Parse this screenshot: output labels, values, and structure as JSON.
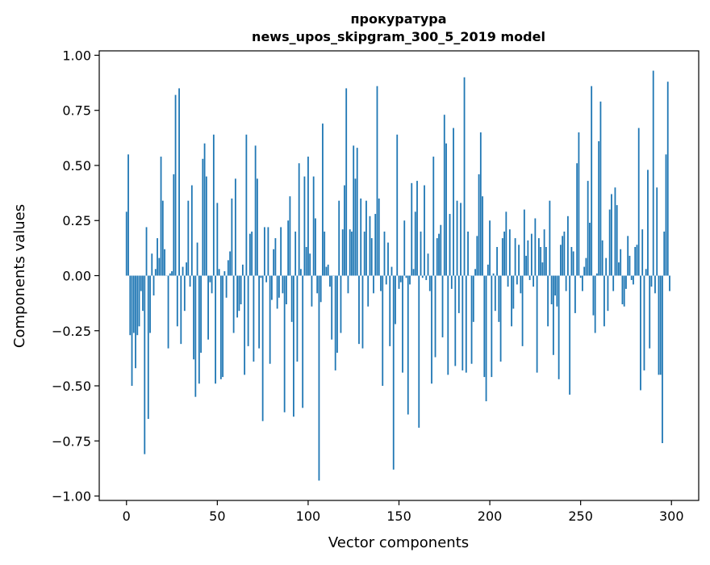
{
  "chart_data": {
    "type": "bar",
    "title": "прокуратура",
    "subtitle": "news_upos_skipgram_300_5_2019 model",
    "xlabel": "Vector components",
    "ylabel": "Components values",
    "xlim": [
      -15,
      315
    ],
    "ylim": [
      -1.02,
      1.02
    ],
    "xticks": [
      0,
      50,
      100,
      150,
      200,
      250,
      300
    ],
    "xtick_labels": [
      "0",
      "50",
      "100",
      "150",
      "200",
      "250",
      "300"
    ],
    "yticks": [
      1.0,
      0.75,
      0.5,
      0.25,
      0.0,
      -0.25,
      -0.5,
      -0.75,
      -1.0
    ],
    "ytick_labels": [
      "1.00",
      "0.75",
      "0.50",
      "0.25",
      "0.00",
      "−0.25",
      "−0.50",
      "−0.75",
      "−1.00"
    ],
    "grid": false,
    "bar_color": "#1f77b4",
    "values": [
      0.29,
      0.55,
      -0.27,
      -0.5,
      -0.26,
      -0.42,
      -0.27,
      -0.23,
      -0.07,
      -0.16,
      -0.81,
      0.22,
      -0.65,
      -0.26,
      0.1,
      -0.09,
      0.03,
      0.17,
      0.08,
      0.54,
      0.34,
      0.12,
      0.0,
      -0.33,
      0.01,
      0.02,
      0.46,
      0.82,
      -0.23,
      0.85,
      -0.31,
      0.04,
      -0.16,
      0.06,
      0.34,
      -0.05,
      0.41,
      -0.38,
      -0.55,
      0.15,
      -0.49,
      -0.35,
      0.53,
      0.6,
      0.45,
      -0.29,
      -0.03,
      -0.08,
      0.64,
      -0.49,
      0.33,
      0.03,
      -0.47,
      -0.46,
      0.02,
      -0.1,
      0.07,
      0.11,
      0.35,
      -0.26,
      0.44,
      -0.19,
      -0.16,
      -0.13,
      0.05,
      -0.45,
      0.64,
      -0.32,
      0.19,
      0.2,
      -0.39,
      0.59,
      0.44,
      -0.33,
      -0.01,
      -0.66,
      0.22,
      -0.03,
      0.22,
      -0.4,
      -0.11,
      0.12,
      0.17,
      -0.15,
      -0.1,
      0.22,
      -0.08,
      -0.62,
      -0.13,
      0.25,
      0.36,
      -0.21,
      -0.64,
      0.2,
      -0.39,
      0.51,
      0.03,
      -0.6,
      0.45,
      0.13,
      0.54,
      0.1,
      -0.14,
      0.45,
      0.26,
      -0.08,
      -0.93,
      -0.12,
      0.69,
      0.2,
      0.04,
      0.05,
      -0.05,
      -0.29,
      0.0,
      -0.43,
      -0.35,
      0.34,
      -0.26,
      0.21,
      0.41,
      0.85,
      -0.08,
      0.21,
      0.2,
      0.59,
      0.44,
      0.58,
      -0.31,
      0.35,
      -0.33,
      0.2,
      0.34,
      -0.14,
      0.27,
      0.17,
      -0.08,
      0.28,
      0.86,
      0.35,
      -0.07,
      -0.5,
      0.2,
      -0.04,
      0.15,
      -0.32,
      0.04,
      -0.88,
      -0.22,
      0.64,
      -0.06,
      -0.03,
      -0.44,
      0.25,
      -0.01,
      -0.63,
      -0.04,
      0.42,
      0.03,
      0.29,
      0.43,
      -0.69,
      0.2,
      -0.01,
      0.41,
      -0.02,
      0.1,
      -0.07,
      -0.49,
      0.54,
      -0.37,
      0.17,
      0.19,
      0.23,
      -0.28,
      0.73,
      0.6,
      -0.45,
      0.28,
      -0.06,
      0.67,
      -0.41,
      0.34,
      -0.17,
      0.33,
      -0.43,
      0.9,
      -0.44,
      0.2,
      0.0,
      -0.4,
      -0.21,
      0.03,
      0.18,
      0.46,
      0.65,
      0.36,
      -0.46,
      -0.57,
      0.05,
      0.25,
      -0.46,
      0.01,
      -0.16,
      0.13,
      -0.21,
      -0.39,
      0.17,
      0.2,
      0.29,
      -0.05,
      0.21,
      -0.23,
      -0.15,
      0.17,
      -0.04,
      0.14,
      -0.08,
      -0.32,
      0.3,
      0.09,
      0.16,
      -0.02,
      0.19,
      -0.05,
      0.26,
      -0.44,
      0.17,
      0.13,
      0.06,
      0.21,
      0.13,
      -0.23,
      0.34,
      -0.13,
      -0.36,
      -0.09,
      -0.14,
      -0.47,
      0.14,
      0.18,
      0.2,
      -0.07,
      0.27,
      -0.54,
      0.13,
      0.11,
      -0.17,
      0.51,
      0.65,
      -0.01,
      -0.07,
      0.04,
      0.08,
      0.43,
      0.24,
      0.86,
      -0.18,
      -0.26,
      0.01,
      0.61,
      0.79,
      0.16,
      -0.23,
      0.08,
      -0.16,
      0.3,
      0.37,
      -0.07,
      0.4,
      0.32,
      0.06,
      0.12,
      -0.13,
      -0.14,
      -0.06,
      0.18,
      0.09,
      -0.02,
      -0.04,
      0.13,
      0.14,
      0.67,
      -0.52,
      0.21,
      -0.43,
      0.03,
      0.48,
      -0.33,
      -0.05,
      0.93,
      -0.08,
      0.4,
      -0.45,
      -0.45,
      -0.76,
      0.2,
      0.55,
      0.88,
      -0.07
    ]
  }
}
